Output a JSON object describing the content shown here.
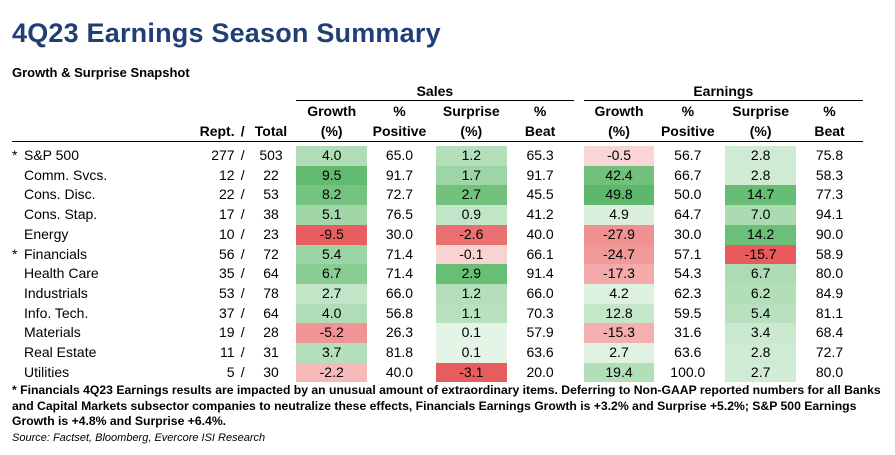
{
  "title": "4Q23 Earnings Season Summary",
  "subtitle": "Growth & Surprise Snapshot",
  "groups": {
    "sales": "Sales",
    "earnings": "Earnings"
  },
  "headers": {
    "rept": "Rept.",
    "slash": "/",
    "total": "Total",
    "growth_1": "Growth",
    "growth_2": "(%)",
    "positive_1": "%",
    "positive_2": "Positive",
    "surprise_1": "Surprise",
    "surprise_2": "(%)",
    "beat_1": "%",
    "beat_2": "Beat"
  },
  "rows": [
    {
      "star": "*",
      "sector": "S&P 500",
      "rept": "277",
      "slash": "/",
      "total": "503",
      "s_growth": "4.0",
      "s_pos": "65.0",
      "s_surp": "1.2",
      "s_beat": "65.3",
      "e_growth": "-0.5",
      "e_pos": "56.7",
      "e_surp": "2.8",
      "e_beat": "75.8"
    },
    {
      "star": "",
      "sector": "Comm. Svcs.",
      "rept": "12",
      "slash": "/",
      "total": "22",
      "s_growth": "9.5",
      "s_pos": "91.7",
      "s_surp": "1.7",
      "s_beat": "91.7",
      "e_growth": "42.4",
      "e_pos": "66.7",
      "e_surp": "2.8",
      "e_beat": "58.3"
    },
    {
      "star": "",
      "sector": "Cons. Disc.",
      "rept": "22",
      "slash": "/",
      "total": "53",
      "s_growth": "8.2",
      "s_pos": "72.7",
      "s_surp": "2.7",
      "s_beat": "45.5",
      "e_growth": "49.8",
      "e_pos": "50.0",
      "e_surp": "14.7",
      "e_beat": "77.3"
    },
    {
      "star": "",
      "sector": "Cons. Stap.",
      "rept": "17",
      "slash": "/",
      "total": "38",
      "s_growth": "5.1",
      "s_pos": "76.5",
      "s_surp": "0.9",
      "s_beat": "41.2",
      "e_growth": "4.9",
      "e_pos": "64.7",
      "e_surp": "7.0",
      "e_beat": "94.1"
    },
    {
      "star": "",
      "sector": "Energy",
      "rept": "10",
      "slash": "/",
      "total": "23",
      "s_growth": "-9.5",
      "s_pos": "30.0",
      "s_surp": "-2.6",
      "s_beat": "40.0",
      "e_growth": "-27.9",
      "e_pos": "30.0",
      "e_surp": "14.2",
      "e_beat": "90.0"
    },
    {
      "star": "*",
      "sector": "Financials",
      "rept": "56",
      "slash": "/",
      "total": "72",
      "s_growth": "5.4",
      "s_pos": "71.4",
      "s_surp": "-0.1",
      "s_beat": "66.1",
      "e_growth": "-24.7",
      "e_pos": "57.1",
      "e_surp": "-15.7",
      "e_beat": "58.9"
    },
    {
      "star": "",
      "sector": "Health Care",
      "rept": "35",
      "slash": "/",
      "total": "64",
      "s_growth": "6.7",
      "s_pos": "71.4",
      "s_surp": "2.9",
      "s_beat": "91.4",
      "e_growth": "-17.3",
      "e_pos": "54.3",
      "e_surp": "6.7",
      "e_beat": "80.0"
    },
    {
      "star": "",
      "sector": "Industrials",
      "rept": "53",
      "slash": "/",
      "total": "78",
      "s_growth": "2.7",
      "s_pos": "66.0",
      "s_surp": "1.2",
      "s_beat": "66.0",
      "e_growth": "4.2",
      "e_pos": "62.3",
      "e_surp": "6.2",
      "e_beat": "84.9"
    },
    {
      "star": "",
      "sector": "Info. Tech.",
      "rept": "37",
      "slash": "/",
      "total": "64",
      "s_growth": "4.0",
      "s_pos": "56.8",
      "s_surp": "1.1",
      "s_beat": "70.3",
      "e_growth": "12.8",
      "e_pos": "59.5",
      "e_surp": "5.4",
      "e_beat": "81.1"
    },
    {
      "star": "",
      "sector": "Materials",
      "rept": "19",
      "slash": "/",
      "total": "28",
      "s_growth": "-5.2",
      "s_pos": "26.3",
      "s_surp": "0.1",
      "s_beat": "57.9",
      "e_growth": "-15.3",
      "e_pos": "31.6",
      "e_surp": "3.4",
      "e_beat": "68.4"
    },
    {
      "star": "",
      "sector": "Real Estate",
      "rept": "11",
      "slash": "/",
      "total": "31",
      "s_growth": "3.7",
      "s_pos": "81.8",
      "s_surp": "0.1",
      "s_beat": "63.6",
      "e_growth": "2.7",
      "e_pos": "63.6",
      "e_surp": "2.8",
      "e_beat": "72.7"
    },
    {
      "star": "",
      "sector": "Utilities",
      "rept": "5",
      "slash": "/",
      "total": "30",
      "s_growth": "-2.2",
      "s_pos": "40.0",
      "s_surp": "-3.1",
      "s_beat": "20.0",
      "e_growth": "19.4",
      "e_pos": "100.0",
      "e_surp": "2.7",
      "e_beat": "80.0"
    }
  ],
  "footnote": "* Financials 4Q23 Earnings results are impacted by an unusual amount of extraordinary items. Deferring to Non-GAAP reported numbers for all Banks and Capital Markets subsector companies to neutralize these effects, Financials Earnings Growth is +3.2% and Surprise +5.2%; S&P 500 Earnings Growth is +4.8% and Surprise +6.4%.",
  "source": "Source: Factset, Bloomberg, Evercore ISI Research",
  "colors": {
    "title": "#1f3f75",
    "positive_max": "#5cb86a",
    "negative_max": "#e8585a",
    "neutral": "#ffffff"
  }
}
